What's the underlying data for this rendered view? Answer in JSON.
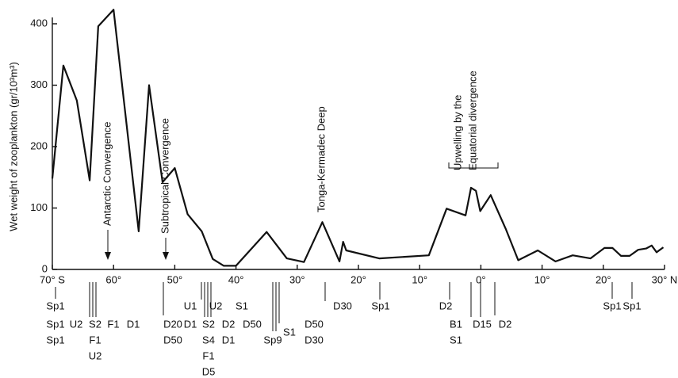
{
  "chart_data": {
    "type": "line",
    "y_label": "Wet weight of zooplankton (gr/10³m³)",
    "x": [
      -70,
      -68.2,
      -66,
      -63.9,
      -62.5,
      -60,
      -55.9,
      -54.2,
      -52,
      -50,
      -47.9,
      -45.6,
      -43.8,
      -42,
      -40,
      -35,
      -31.7,
      -28.9,
      -25.9,
      -23.1,
      -22.5,
      -22,
      -16.6,
      -8.5,
      -5.6,
      -2.5,
      -1.6,
      -0.8,
      -0.1,
      1.6,
      4.1,
      6.1,
      9.3,
      12.2,
      15,
      17.9,
      20.2,
      21.5,
      22.9,
      24.3,
      25.7,
      27,
      27.9,
      28.7,
      29.8
    ],
    "values": [
      148,
      332,
      275,
      145,
      396,
      423,
      62,
      300,
      142,
      165,
      90,
      62,
      17,
      6,
      6,
      61,
      18,
      12,
      77,
      13,
      45,
      31,
      18,
      23,
      99,
      88,
      133,
      128,
      95,
      121,
      65,
      15,
      31,
      13,
      23,
      18,
      35,
      35,
      22,
      22,
      32,
      34,
      39,
      28,
      36
    ],
    "color": "#111111",
    "xlim": [
      -70,
      30
    ],
    "xticks": [
      {
        "value": -70,
        "label": "70° S"
      },
      {
        "value": -60,
        "label": "60°"
      },
      {
        "value": -50,
        "label": "50°"
      },
      {
        "value": -40,
        "label": "40°"
      },
      {
        "value": -30,
        "label": "30°"
      },
      {
        "value": -20,
        "label": "20°"
      },
      {
        "value": -10,
        "label": "10°"
      },
      {
        "value": 0,
        "label": "0°"
      },
      {
        "value": 10,
        "label": "10°"
      },
      {
        "value": 20,
        "label": "20°"
      },
      {
        "value": 30,
        "label": "30° N"
      }
    ],
    "ylim": [
      0,
      400
    ],
    "yticks": [
      0,
      100,
      200,
      300,
      400
    ],
    "annotations": [
      "Antarctic Convergence",
      "Subtropical Convergence",
      "Tonga-Kermadec Deep",
      "Upwelling by the",
      "Equatorial divergence"
    ],
    "stations": [
      "Sp1",
      "Sp1",
      "Sp1",
      "U2",
      "S2",
      "F1",
      "U2",
      "F1",
      "D1",
      "D20",
      "D50",
      "U1",
      "D1",
      "S2",
      "S4",
      "F1",
      "D5",
      "U2",
      "D2",
      "D1",
      "S1",
      "D50",
      "Sp9",
      "S1",
      "D50",
      "D30",
      "D30",
      "Sp1",
      "D2",
      "B1",
      "S1",
      "D15",
      "D2",
      "Sp1",
      "Sp1"
    ]
  }
}
